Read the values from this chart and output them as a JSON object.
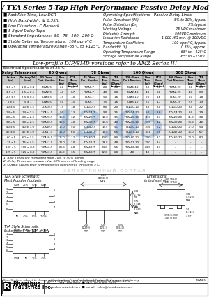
{
  "title": "TZA / TYA Series 5-Tap High Performance Passive Delay Modules",
  "bullets_left": [
    "Fast Rise Time, Low DCR",
    "High Bandwidth:  ≥ 0.35/tᵣ",
    "Low Distortion LC Network",
    "5 Equal Delay Taps",
    "Standard Impedances:  50 · 75 · 100 · 200 Ω",
    "Stable Delay vs. Temperature:  100 ppm/°C",
    "Operating Temperature Range -65°C to +125°C"
  ],
  "bullets_right_title": "Operating Specifications - Passive Delay Lines",
  "bullets_right": [
    [
      "Pulse Overshoot (Pk)",
      "5% to 10%, typical"
    ],
    [
      "Pulse Distortion (Dₙ)",
      "3% typical"
    ],
    [
      "Working Voltage",
      "25 VDC maximum"
    ],
    [
      "Dielectric Strength",
      "500VDC minimum"
    ],
    [
      "Insulation Resistance",
      "1,000 MΩ min. @ 100VDC"
    ],
    [
      "Temperature Coefficient",
      "100 ppm/°C, typical"
    ],
    [
      "Bandwidth (tᵣ)",
      "0.35tᵣ, approx."
    ],
    [
      "Operating Temperature Range",
      "-65° to +125°C"
    ],
    [
      "Storage Temperature Range",
      "-65° to +150°C"
    ]
  ],
  "low_profile_note": "Low-profile DIP/SMD versions refer to AMZ Series !!!",
  "table_title": "Electrical Specifications at 25°C",
  "table_rows": [
    [
      "1.0 x 5",
      "1.0 ± 0.4",
      "TZA1-5",
      "2.0",
      "0.7",
      "TZA1-7",
      "2.0",
      "0.8",
      "TZA1-10",
      "2.0",
      "0.8",
      "TZA1-20",
      "2.0",
      "0.9"
    ],
    [
      "1.5 x 5",
      "1.5 ± 0.5",
      "TZA2-5",
      "4.0",
      "0.7",
      "TZA2-7",
      "4.0",
      "0.8",
      "TZA2-10",
      "4.0",
      "0.8",
      "TZA2-20",
      "4.0",
      "0.9"
    ],
    [
      "2.5 x 5",
      "2.5 ± 0.5",
      "TZA3-5",
      "3.5",
      "1.0",
      "TZA3-7",
      "5.0",
      "1.6",
      "TZA3-10",
      "5.0",
      "1.6",
      "TZA3-20",
      "5.0",
      "1.8"
    ],
    [
      "5 x 5",
      "5 ± 1",
      "TZA5-5",
      "5.0",
      "1.5",
      "TZA5-7",
      "7.5",
      "1.6",
      "TZA5-10",
      "7.5",
      "1.7",
      "TZA5-20",
      "7.5",
      "1.9"
    ],
    [
      "10 x 5",
      "10 ± 1.5",
      "TZA10-5",
      "7.5",
      "1.8",
      "TZA10-7",
      "8.0",
      "2.0",
      "TZA10-10",
      "8.0",
      "2.0",
      "TZA10-20",
      "8.0",
      "2.2"
    ],
    [
      "14 x 5",
      "14 ± 1.5",
      "TZA14-5",
      "9.0",
      "2.3",
      "TZA14-7",
      "9.0",
      "2.5",
      "TZA14-10",
      "9.0",
      "2.6",
      "TZA14-20",
      "9.0",
      "2.9"
    ],
    [
      "20 x 5",
      "20 ± 2.0",
      "TZA20-5",
      "10.0",
      "3.2",
      "TZA20-7",
      "10.0",
      "3.5",
      "TZA20-10",
      "11.0",
      "3.7",
      "TZA20-20",
      "11.0",
      "3.8"
    ],
    [
      "30 x 5",
      "30 ± 2.5",
      "TZA30-5",
      "10.0",
      "4.0",
      "TZA30-7",
      "13.0",
      "4.0",
      "TZA30-10",
      "13.0",
      "4.2",
      "TZA30-20",
      "13.0",
      "4.2"
    ],
    [
      "40 x 5",
      "40 ± 3.0",
      "TZA40-5",
      "12.0",
      "5.0",
      "TZA40-7",
      "15.5",
      "5.1",
      "TZA40-10",
      "15.5",
      "5.2",
      "TZA40-20",
      "17.0",
      "5.4"
    ],
    [
      "47 x 5",
      "47 ± 3.0",
      "TZA47-5",
      "13.0",
      "6.0",
      "TZA47-7",
      "16.5",
      "6.6",
      "TZA47-10",
      "16.1",
      "6.6",
      "TZA47-20",
      "16.0",
      "6.7"
    ],
    [
      "60 x 5",
      "60 ± 3.5",
      "TZA60-5",
      "15.0",
      "7.2",
      "TZA60-7",
      "20.0",
      "8.0",
      "TZA60-10",
      "20.0",
      "8.1",
      "TZA60-20",
      "20.0",
      "8.2"
    ],
    [
      "75 x 5",
      "75 ± 4.5",
      "TZA11-5",
      "18.0",
      "2.0",
      "TZA11-7",
      "18.5",
      "4.8",
      "TZA11-10",
      "20.0",
      "3.4",
      "-",
      "-",
      "-"
    ],
    [
      "100 x 5",
      "100 ± 8.0",
      "TZA12-5",
      "20.0",
      "2.8",
      "TZA12-7",
      "24.0",
      "5.6",
      "TZA12-10",
      "24.0",
      "3.7",
      "-",
      "-",
      "-"
    ],
    [
      "125 x 5",
      "125 ± 8.0",
      "TZA13-5",
      "25.0",
      "3.5",
      "TZA13-7",
      "32.0",
      "6.8",
      "4.0",
      "4.0",
      "-",
      "-",
      "-",
      "-"
    ]
  ],
  "footnotes": [
    "1. Rise Times are measured from 10% to 90% points.",
    "2. Delay Times are measured at 50% points of leading edge.",
    "3. Output (100% test) termination is guaranteed through 6 x tᵣ."
  ],
  "watermark_text": "12.05",
  "watermark_color": "#3a7abf",
  "watermark_alpha": 0.3,
  "bg_color": "#ffffff",
  "company_name": "Rhombus\nIndustries Inc.",
  "company_addr1": "15601 Chemical Lane, Huntington Beach, CA 92649-1595",
  "company_addr2": "Phone: (714) 898-0900  ■  FAX: (714) 895-0971",
  "company_addr3": "www.rhombus-ind.com  ■  email:  sales@rhombus-ind.com",
  "footer_left": "Specifications subject to change without notice.",
  "footer_center": "For other Induced Custom Designs, contact factory.",
  "footer_right": "TZA4-5"
}
